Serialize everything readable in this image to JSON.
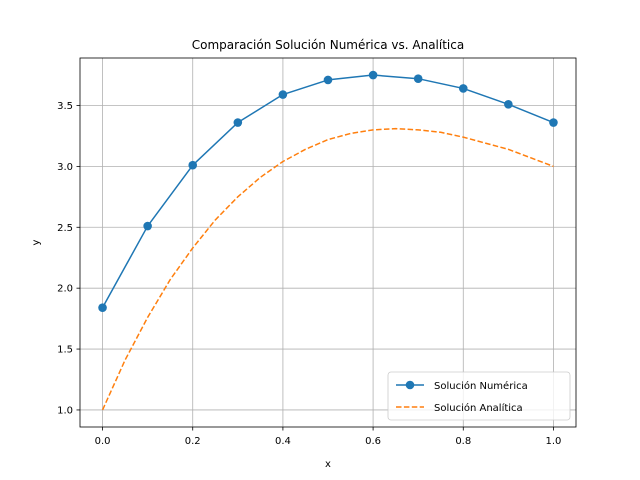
{
  "chart_data": {
    "type": "line",
    "title": "Comparación Solución Numérica vs. Analítica",
    "xlabel": "x",
    "ylabel": "y",
    "xlim": [
      -0.05,
      1.05
    ],
    "ylim": [
      0.86,
      3.89
    ],
    "xticks": [
      0.0,
      0.2,
      0.4,
      0.6,
      0.8,
      1.0
    ],
    "xtick_labels": [
      "0.0",
      "0.2",
      "0.4",
      "0.6",
      "0.8",
      "1.0"
    ],
    "yticks": [
      1.0,
      1.5,
      2.0,
      2.5,
      3.0,
      3.5
    ],
    "ytick_labels": [
      "1.0",
      "1.5",
      "2.0",
      "2.5",
      "3.0",
      "3.5"
    ],
    "grid": true,
    "legend_position": "lower right",
    "series": [
      {
        "name": "Solución Numérica",
        "color": "#1f77b4",
        "style": "solid",
        "marker": "circle",
        "x": [
          0.0,
          0.1,
          0.2,
          0.3,
          0.4,
          0.5,
          0.6,
          0.7,
          0.8,
          0.9,
          1.0
        ],
        "y": [
          1.84,
          2.51,
          3.01,
          3.36,
          3.59,
          3.71,
          3.75,
          3.72,
          3.64,
          3.51,
          3.36
        ]
      },
      {
        "name": "Solución Analítica",
        "color": "#ff7f0e",
        "style": "dashed",
        "marker": "none",
        "x": [
          0.0,
          0.05,
          0.1,
          0.15,
          0.2,
          0.25,
          0.3,
          0.35,
          0.4,
          0.45,
          0.5,
          0.55,
          0.6,
          0.65,
          0.7,
          0.75,
          0.8,
          0.85,
          0.9,
          0.95,
          1.0
        ],
        "y": [
          1.0,
          1.41,
          1.76,
          2.07,
          2.33,
          2.56,
          2.75,
          2.91,
          3.04,
          3.14,
          3.22,
          3.27,
          3.3,
          3.31,
          3.3,
          3.28,
          3.24,
          3.19,
          3.14,
          3.07,
          3.0
        ]
      }
    ]
  }
}
